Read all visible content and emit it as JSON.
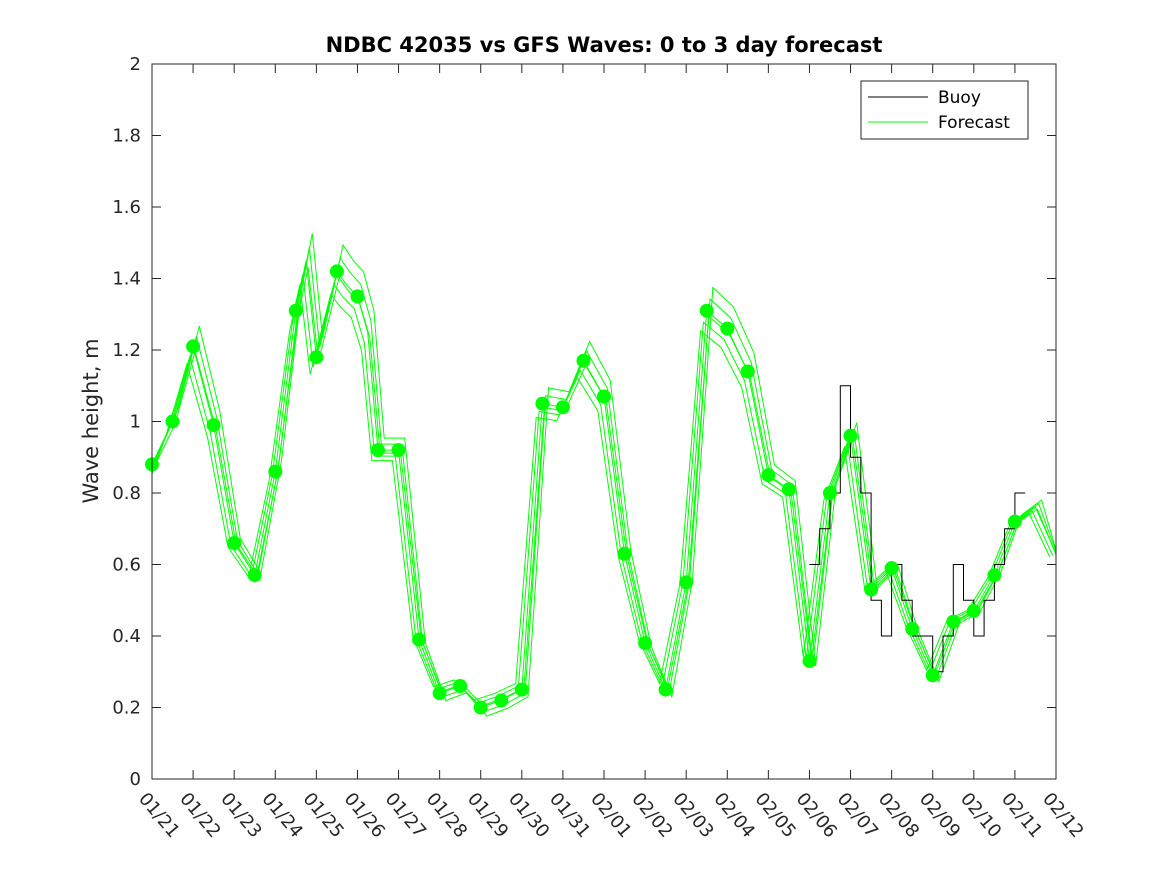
{
  "chart_data": {
    "type": "line",
    "title": "NDBC 42035 vs GFS Waves: 0 to 3 day forecast",
    "xlabel": "",
    "ylabel": "Wave height, m",
    "ylim": [
      0,
      2
    ],
    "yticks": [
      0,
      0.2,
      0.4,
      0.6,
      0.8,
      1,
      1.2,
      1.4,
      1.6,
      1.8,
      2
    ],
    "ytick_labels": [
      "0",
      "0.2",
      "0.4",
      "0.6",
      "0.8",
      "1",
      "1.2",
      "1.4",
      "1.6",
      "1.8",
      "2"
    ],
    "xlim_days": [
      0,
      22
    ],
    "xtick_labels": [
      "01/21",
      "01/22",
      "01/23",
      "01/24",
      "01/25",
      "01/26",
      "01/27",
      "01/28",
      "01/29",
      "01/30",
      "01/31",
      "02/01",
      "02/02",
      "02/03",
      "02/04",
      "02/05",
      "02/06",
      "02/07",
      "02/08",
      "02/09",
      "02/10",
      "02/11",
      "02/12"
    ],
    "legend": {
      "position": "top-right",
      "entries": [
        "Buoy",
        "Forecast"
      ]
    },
    "colors": {
      "buoy": "#000000",
      "forecast": "#00ff00",
      "axis": "#262626"
    },
    "series": [
      {
        "name": "Forecast",
        "x": [
          0,
          0.5,
          1,
          1.5,
          2,
          2.5,
          3,
          3.5,
          3.75,
          4,
          4.25,
          4.5,
          4.75,
          5,
          5.25,
          5.5,
          6,
          6.5,
          7,
          7.5,
          8,
          8.5,
          9,
          9.5,
          10,
          10.5,
          11,
          11.5,
          12,
          12.5,
          13,
          13.5,
          14,
          14.5,
          15,
          15.5,
          16,
          16.5,
          17,
          17.5,
          18,
          18.5,
          19,
          19.5,
          20,
          20.5,
          21,
          21.5,
          22
        ],
        "y": [
          0.88,
          1.0,
          1.21,
          0.99,
          0.66,
          0.57,
          0.86,
          1.31,
          1.45,
          1.18,
          1.3,
          1.42,
          1.38,
          1.35,
          1.25,
          0.92,
          0.92,
          0.39,
          0.24,
          0.26,
          0.2,
          0.22,
          0.25,
          1.05,
          1.04,
          1.17,
          1.07,
          0.63,
          0.38,
          0.25,
          0.55,
          1.31,
          1.26,
          1.14,
          0.85,
          0.81,
          0.33,
          0.8,
          0.96,
          0.53,
          0.59,
          0.42,
          0.29,
          0.44,
          0.47,
          0.57,
          0.72,
          0.76,
          0.63
        ]
      },
      {
        "name": "Buoy",
        "x": [
          16,
          16.25,
          16.5,
          16.75,
          17,
          17.25,
          17.5,
          17.75,
          18,
          18.25,
          18.5,
          18.75,
          19,
          19.25,
          19.5,
          19.75,
          20,
          20.25,
          20.5,
          20.75,
          21,
          21.25
        ],
        "y": [
          0.6,
          0.7,
          0.8,
          1.1,
          0.9,
          0.8,
          0.5,
          0.4,
          0.6,
          0.5,
          0.4,
          0.4,
          0.3,
          0.4,
          0.6,
          0.5,
          0.4,
          0.5,
          0.6,
          0.7,
          0.8,
          0.8
        ]
      }
    ],
    "forecast_markers": {
      "x": [
        0,
        0.5,
        1,
        1.5,
        2,
        2.5,
        3,
        3.5,
        4,
        4.5,
        5,
        5.5,
        6,
        6.5,
        7,
        7.5,
        8,
        8.5,
        9,
        9.5,
        10,
        10.5,
        11,
        11.5,
        12,
        12.5,
        13,
        13.5,
        14,
        14.5,
        15,
        15.5,
        16,
        16.5,
        17,
        17.5,
        18,
        18.5,
        19,
        19.5,
        20,
        20.5,
        21
      ],
      "y": [
        0.88,
        1.0,
        1.21,
        0.99,
        0.66,
        0.57,
        0.86,
        1.31,
        1.18,
        1.42,
        1.35,
        0.92,
        0.92,
        0.39,
        0.24,
        0.26,
        0.2,
        0.22,
        0.25,
        1.05,
        1.04,
        1.17,
        1.07,
        0.63,
        0.38,
        0.25,
        0.55,
        1.31,
        1.26,
        1.14,
        0.85,
        0.81,
        0.33,
        0.8,
        0.96,
        0.53,
        0.59,
        0.42,
        0.29,
        0.44,
        0.47,
        0.57,
        0.72
      ]
    }
  }
}
